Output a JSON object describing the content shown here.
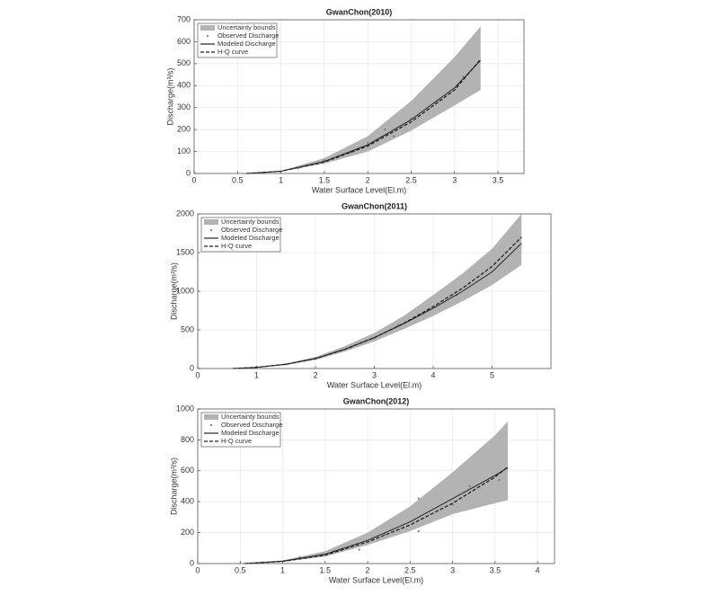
{
  "chart_data": [
    {
      "type": "line",
      "title": "GwanChon(2010)",
      "xlabel": "Water Surface Level(El.m)",
      "ylabel": "Discharge(m³/s)",
      "xlim": [
        0,
        3.8
      ],
      "ylim": [
        0,
        700
      ],
      "xticks": [
        0,
        0.5,
        1,
        1.5,
        2,
        2.5,
        3,
        3.5
      ],
      "yticks": [
        0,
        100,
        200,
        300,
        400,
        500,
        600,
        700
      ],
      "grid": true,
      "legend": "upper left",
      "x": [
        0.6,
        1.0,
        1.5,
        2.0,
        2.5,
        3.0,
        3.3
      ],
      "band": {
        "name": "Uncertainty bounds",
        "color": "#b3b3b3",
        "lower": [
          0,
          8,
          45,
          100,
          195,
          310,
          380
        ],
        "upper": [
          0,
          12,
          70,
          170,
          330,
          530,
          670
        ]
      },
      "observed": {
        "name": "Observed Discharge",
        "color": "#777777",
        "x": [
          1.2,
          1.5,
          1.8,
          2.0,
          2.2,
          2.3,
          2.5,
          2.8,
          3.1
        ],
        "values": [
          25,
          60,
          95,
          140,
          200,
          170,
          250,
          330,
          440
        ]
      },
      "series": [
        {
          "name": "Modeled Discharge",
          "color": "#222222",
          "dashed": false,
          "values": [
            0,
            10,
            55,
            130,
            245,
            390,
            515
          ]
        },
        {
          "name": "H-Q curve",
          "color": "#222222",
          "dashed": true,
          "values": [
            0,
            10,
            52,
            125,
            235,
            380,
            520
          ]
        }
      ]
    },
    {
      "type": "line",
      "title": "GwanChon(2011)",
      "xlabel": "Water Surface Level(El.m)",
      "ylabel": "Discharge(m³/s)",
      "xlim": [
        0,
        6
      ],
      "ylim": [
        0,
        2000
      ],
      "xticks": [
        0,
        1,
        2,
        3,
        4,
        5
      ],
      "yticks": [
        0,
        500,
        1000,
        1500,
        2000
      ],
      "grid": true,
      "legend": "upper left",
      "x": [
        0.6,
        1.0,
        1.5,
        2.0,
        2.5,
        3.0,
        3.5,
        4.0,
        4.5,
        5.0,
        5.5
      ],
      "band": {
        "name": "Uncertainty bounds",
        "color": "#b3b3b3",
        "lower": [
          0,
          12,
          48,
          110,
          220,
          350,
          510,
          680,
          870,
          1080,
          1340
        ],
        "upper": [
          0,
          18,
          62,
          150,
          290,
          460,
          680,
          950,
          1230,
          1550,
          2000
        ]
      },
      "observed": {
        "name": "Observed Discharge",
        "color": "#777777",
        "x": [
          1.0,
          1.5,
          2.0,
          2.6,
          3.0,
          3.4,
          3.9,
          4.4
        ],
        "values": [
          20,
          55,
          135,
          270,
          390,
          560,
          750,
          950
        ]
      },
      "series": [
        {
          "name": "Modeled Discharge",
          "color": "#222222",
          "dashed": false,
          "values": [
            0,
            15,
            55,
            130,
            250,
            400,
            580,
            780,
            1000,
            1250,
            1620
          ]
        },
        {
          "name": "H-Q curve",
          "color": "#222222",
          "dashed": true,
          "values": [
            0,
            15,
            55,
            128,
            248,
            400,
            585,
            800,
            1040,
            1320,
            1700
          ]
        }
      ]
    },
    {
      "type": "line",
      "title": "GwanChon(2012)",
      "xlabel": "Water Surface Level(El.m)",
      "ylabel": "Discharge(m³/s)",
      "xlim": [
        0,
        4.2
      ],
      "ylim": [
        0,
        1000
      ],
      "xticks": [
        0,
        0.5,
        1,
        1.5,
        2,
        2.5,
        3,
        3.5,
        4
      ],
      "yticks": [
        0,
        200,
        400,
        600,
        800,
        1000
      ],
      "grid": true,
      "legend": "upper left",
      "x": [
        0.55,
        1.0,
        1.5,
        2.0,
        2.5,
        3.0,
        3.5,
        3.65
      ],
      "band": {
        "name": "Uncertainty bounds",
        "color": "#b3b3b3",
        "lower": [
          0,
          10,
          45,
          120,
          210,
          320,
          390,
          410
        ],
        "upper": [
          0,
          20,
          80,
          200,
          370,
          590,
          830,
          920
        ]
      },
      "observed": {
        "name": "Observed Discharge",
        "color": "#777777",
        "x": [
          1.2,
          1.6,
          1.9,
          2.2,
          2.6,
          2.6,
          3.0,
          3.2,
          3.55
        ],
        "values": [
          40,
          80,
          90,
          190,
          210,
          420,
          380,
          500,
          540
        ]
      },
      "series": [
        {
          "name": "Modeled Discharge",
          "color": "#222222",
          "dashed": false,
          "values": [
            0,
            15,
            60,
            150,
            270,
            420,
            570,
            620
          ]
        },
        {
          "name": "H-Q curve",
          "color": "#222222",
          "dashed": true,
          "values": [
            0,
            14,
            55,
            140,
            250,
            390,
            560,
            625
          ]
        }
      ]
    }
  ]
}
